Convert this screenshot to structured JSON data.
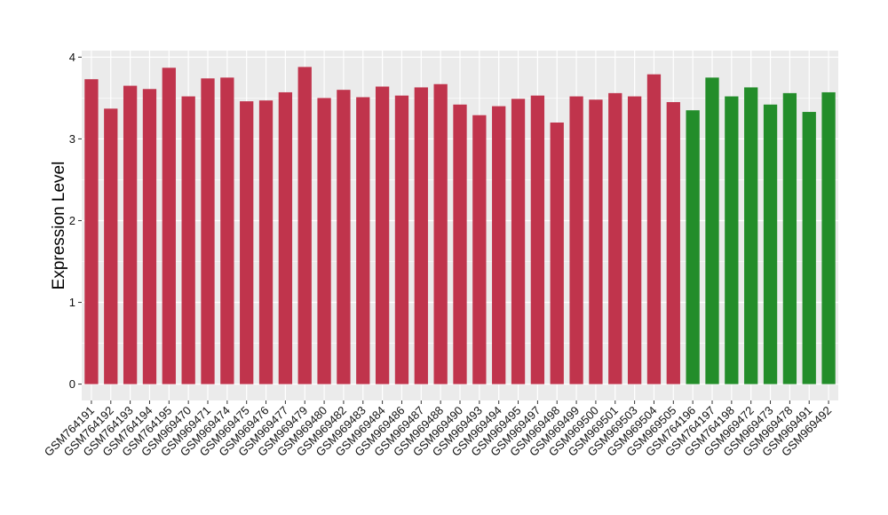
{
  "chart_data": {
    "type": "bar",
    "ylabel": "Expression Level",
    "xlabel": "",
    "ylim": [
      -0.2,
      4.08
    ],
    "yticks": [
      0,
      1,
      2,
      3,
      4
    ],
    "yticklabels": [
      "0",
      "1",
      "2",
      "3",
      "4"
    ],
    "grid": true,
    "legend": "none",
    "categories": [
      "GSM764191",
      "GSM764192",
      "GSM764193",
      "GSM764194",
      "GSM764195",
      "GSM969470",
      "GSM969471",
      "GSM969474",
      "GSM969475",
      "GSM969476",
      "GSM969477",
      "GSM969479",
      "GSM969480",
      "GSM969482",
      "GSM969483",
      "GSM969484",
      "GSM969486",
      "GSM969487",
      "GSM969488",
      "GSM969490",
      "GSM969493",
      "GSM969494",
      "GSM969495",
      "GSM969497",
      "GSM969498",
      "GSM969499",
      "GSM969500",
      "GSM969501",
      "GSM969503",
      "GSM969504",
      "GSM969505",
      "GSM764196",
      "GSM764197",
      "GSM764198",
      "GSM969472",
      "GSM969473",
      "GSM969478",
      "GSM969491",
      "GSM969492"
    ],
    "values": [
      3.73,
      3.37,
      3.65,
      3.61,
      3.87,
      3.52,
      3.74,
      3.75,
      3.46,
      3.47,
      3.57,
      3.88,
      3.5,
      3.6,
      3.51,
      3.64,
      3.53,
      3.63,
      3.67,
      3.42,
      3.29,
      3.4,
      3.49,
      3.53,
      3.2,
      3.52,
      3.48,
      3.56,
      3.52,
      3.79,
      3.45,
      3.35,
      3.75,
      3.52,
      3.63,
      3.42,
      3.56,
      3.33,
      3.57
    ],
    "groups": [
      "a",
      "a",
      "a",
      "a",
      "a",
      "a",
      "a",
      "a",
      "a",
      "a",
      "a",
      "a",
      "a",
      "a",
      "a",
      "a",
      "a",
      "a",
      "a",
      "a",
      "a",
      "a",
      "a",
      "a",
      "a",
      "a",
      "a",
      "a",
      "a",
      "a",
      "a",
      "b",
      "b",
      "b",
      "b",
      "b",
      "b",
      "b",
      "b"
    ],
    "colors": {
      "a": "#c0344c",
      "b": "#238d2a",
      "panel": "#ebebeb",
      "grid": "#ffffff",
      "text": "#111111"
    }
  }
}
